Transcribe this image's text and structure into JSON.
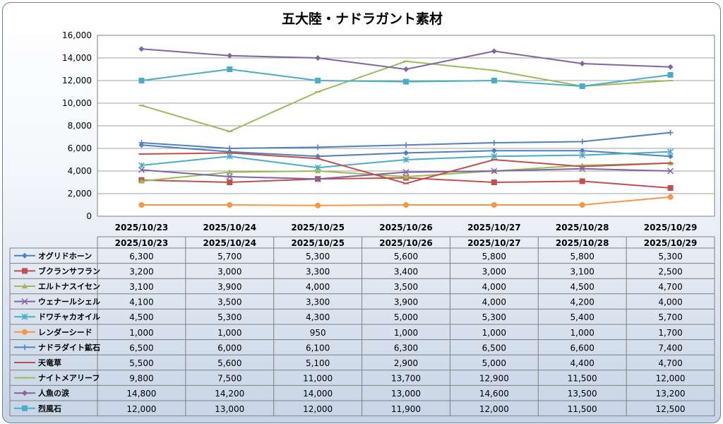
{
  "chart_data": {
    "type": "line",
    "title": "五大陸・ナドラガント素材",
    "ylim": [
      0,
      16000
    ],
    "yticks": [
      "0",
      "2,000",
      "4,000",
      "6,000",
      "8,000",
      "10,000",
      "12,000",
      "14,000",
      "16,000"
    ],
    "grid": true,
    "legend": "table-left",
    "categories": [
      "2025/10/23",
      "2025/10/24",
      "2025/10/25",
      "2025/10/26",
      "2025/10/27",
      "2025/10/28",
      "2025/10/29"
    ],
    "series": [
      {
        "name": "オグリドホーン",
        "color": "#4f81bd",
        "marker": "diamond",
        "values": [
          6300,
          5700,
          5300,
          5600,
          5800,
          5800,
          5300
        ],
        "labels": [
          "6,300",
          "5,700",
          "5,300",
          "5,600",
          "5,800",
          "5,800",
          "5,300"
        ]
      },
      {
        "name": "ブクランサフラン",
        "color": "#c0504d",
        "marker": "square",
        "values": [
          3200,
          3000,
          3300,
          3400,
          3000,
          3100,
          2500
        ],
        "labels": [
          "3,200",
          "3,000",
          "3,300",
          "3,400",
          "3,000",
          "3,100",
          "2,500"
        ]
      },
      {
        "name": "エルトナスイセン",
        "color": "#9bbb59",
        "marker": "triangle",
        "values": [
          3100,
          3900,
          4000,
          3500,
          4000,
          4500,
          4700
        ],
        "labels": [
          "3,100",
          "3,900",
          "4,000",
          "3,500",
          "4,000",
          "4,500",
          "4,700"
        ]
      },
      {
        "name": "ウェナールシェル",
        "color": "#8064a2",
        "marker": "x",
        "values": [
          4100,
          3500,
          3300,
          3900,
          4000,
          4200,
          4000
        ],
        "labels": [
          "4,100",
          "3,500",
          "3,300",
          "3,900",
          "4,000",
          "4,200",
          "4,000"
        ]
      },
      {
        "name": "ドワチャカオイル",
        "color": "#4bacc6",
        "marker": "star",
        "values": [
          4500,
          5300,
          4300,
          5000,
          5300,
          5400,
          5700
        ],
        "labels": [
          "4,500",
          "5,300",
          "4,300",
          "5,000",
          "5,300",
          "5,400",
          "5,700"
        ]
      },
      {
        "name": "レンダーシード",
        "color": "#f79646",
        "marker": "circle",
        "values": [
          1000,
          1000,
          950,
          1000,
          1000,
          1000,
          1700
        ],
        "labels": [
          "1,000",
          "1,000",
          "950",
          "1,000",
          "1,000",
          "1,000",
          "1,700"
        ]
      },
      {
        "name": "ナドラダイト鉱石",
        "color": "#4f81bd",
        "marker": "plus",
        "values": [
          6500,
          6000,
          6100,
          6300,
          6500,
          6600,
          7400
        ],
        "labels": [
          "6,500",
          "6,000",
          "6,100",
          "6,300",
          "6,500",
          "6,600",
          "7,400"
        ]
      },
      {
        "name": "天竜草",
        "color": "#c0504d",
        "marker": "dash",
        "values": [
          5500,
          5600,
          5100,
          2900,
          5000,
          4400,
          4700
        ],
        "labels": [
          "5,500",
          "5,600",
          "5,100",
          "2,900",
          "5,000",
          "4,400",
          "4,700"
        ]
      },
      {
        "name": "ナイトメアリーフ",
        "color": "#9bbb59",
        "marker": "dash",
        "values": [
          9800,
          7500,
          11000,
          13700,
          12900,
          11500,
          12000
        ],
        "labels": [
          "9,800",
          "7,500",
          "11,000",
          "13,700",
          "12,900",
          "11,500",
          "12,000"
        ]
      },
      {
        "name": "人魚の涙",
        "color": "#8064a2",
        "marker": "diamond",
        "values": [
          14800,
          14200,
          14000,
          13000,
          14600,
          13500,
          13200
        ],
        "labels": [
          "14,800",
          "14,200",
          "14,000",
          "13,000",
          "14,600",
          "13,500",
          "13,200"
        ]
      },
      {
        "name": "烈風石",
        "color": "#4bacc6",
        "marker": "square",
        "values": [
          12000,
          13000,
          12000,
          11900,
          12000,
          11500,
          12500
        ],
        "labels": [
          "12,000",
          "13,000",
          "12,000",
          "11,900",
          "12,000",
          "11,500",
          "12,500"
        ]
      }
    ]
  }
}
